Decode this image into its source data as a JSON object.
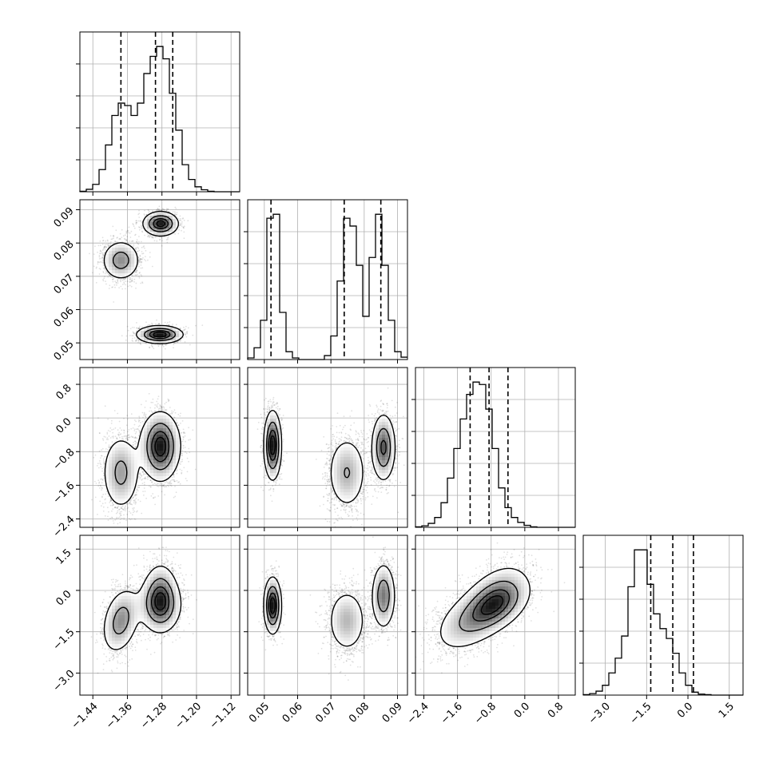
{
  "chart_data": {
    "type": "corner",
    "grid": true,
    "parameters": [
      {
        "index": 0,
        "range": [
          -1.47,
          -1.1
        ],
        "ticks": [
          -1.44,
          -1.36,
          -1.28,
          -1.2,
          -1.12
        ],
        "tick_labels": [
          "−1.44",
          "−1.36",
          "−1.28",
          "−1.20",
          "−1.12"
        ],
        "quantiles": [
          -1.375,
          -1.295,
          -1.255
        ]
      },
      {
        "index": 1,
        "range": [
          0.045,
          0.093
        ],
        "ticks": [
          0.05,
          0.06,
          0.07,
          0.08,
          0.09
        ],
        "tick_labels": [
          "0.05",
          "0.06",
          "0.07",
          "0.08",
          "0.09"
        ],
        "quantiles": [
          0.052,
          0.074,
          0.085
        ]
      },
      {
        "index": 2,
        "range": [
          -2.6,
          1.2
        ],
        "ticks": [
          -2.4,
          -1.6,
          -0.8,
          0.0,
          0.8
        ],
        "tick_labels": [
          "−2.4",
          "−1.6",
          "−0.8",
          "0.0",
          "0.8"
        ],
        "quantiles": [
          -1.3,
          -0.85,
          -0.4
        ]
      },
      {
        "index": 3,
        "range": [
          -3.8,
          2.0
        ],
        "ticks": [
          -3.0,
          -1.5,
          0.0,
          1.5
        ],
        "tick_labels": [
          "−3.0",
          "−1.5",
          "0.0",
          "1.5"
        ],
        "quantiles": [
          -1.35,
          -0.55,
          0.2
        ]
      }
    ],
    "marginal_histograms": [
      {
        "param": 0,
        "counts": [
          0.1,
          0.5,
          1.5,
          4.5,
          9.5,
          15.5,
          18.0,
          17.5,
          15.5,
          18.0,
          24.0,
          27.5,
          29.5,
          27.0,
          20.0,
          12.5,
          5.5,
          2.5,
          1.0,
          0.4,
          0.1,
          0.0,
          0.0,
          0.0,
          0.0
        ]
      },
      {
        "param": 1,
        "counts": [
          0.2,
          1.5,
          5.0,
          18.0,
          18.5,
          6.0,
          1.0,
          0.2,
          0.0,
          0.0,
          0.0,
          0.0,
          0.5,
          3.0,
          10.0,
          18.0,
          17.0,
          12.0,
          5.5,
          13.0,
          18.5,
          12.0,
          5.0,
          1.0,
          0.3
        ]
      },
      {
        "param": 2,
        "counts": [
          0.1,
          0.3,
          0.8,
          2.0,
          5.0,
          10.0,
          16.0,
          22.0,
          27.0,
          29.5,
          29.0,
          24.0,
          16.0,
          8.0,
          4.0,
          2.0,
          1.0,
          0.4,
          0.1,
          0.0,
          0.0,
          0.0,
          0.0,
          0.0,
          0.0
        ]
      },
      {
        "param": 3,
        "counts": [
          0.1,
          0.3,
          0.8,
          2.0,
          4.5,
          7.5,
          12.0,
          22.0,
          29.5,
          29.5,
          22.5,
          16.5,
          13.5,
          11.5,
          8.5,
          4.5,
          2.0,
          0.6,
          0.2,
          0.1,
          0.0,
          0.0,
          0.0,
          0.0,
          0.0
        ]
      }
    ],
    "modes": [
      {
        "weight": 0.34,
        "mean": [
          -1.375,
          0.0748,
          -1.3,
          -1.1
        ],
        "sd": [
          0.022,
          0.003,
          0.45,
          0.6
        ],
        "corr03": 0.3
      },
      {
        "weight": 0.33,
        "mean": [
          -1.283,
          0.0858,
          -0.7,
          -0.2
        ],
        "sd": [
          0.02,
          0.0018,
          0.4,
          0.6
        ],
        "corr03": 0.0
      },
      {
        "weight": 0.33,
        "mean": [
          -1.285,
          0.0525,
          -0.65,
          -0.55
        ],
        "sd": [
          0.026,
          0.0013,
          0.4,
          0.5
        ],
        "corr03": 0.0
      }
    ],
    "corr23": 0.45,
    "contour_levels": [
      0.118,
      0.393,
      0.675,
      0.865
    ]
  }
}
